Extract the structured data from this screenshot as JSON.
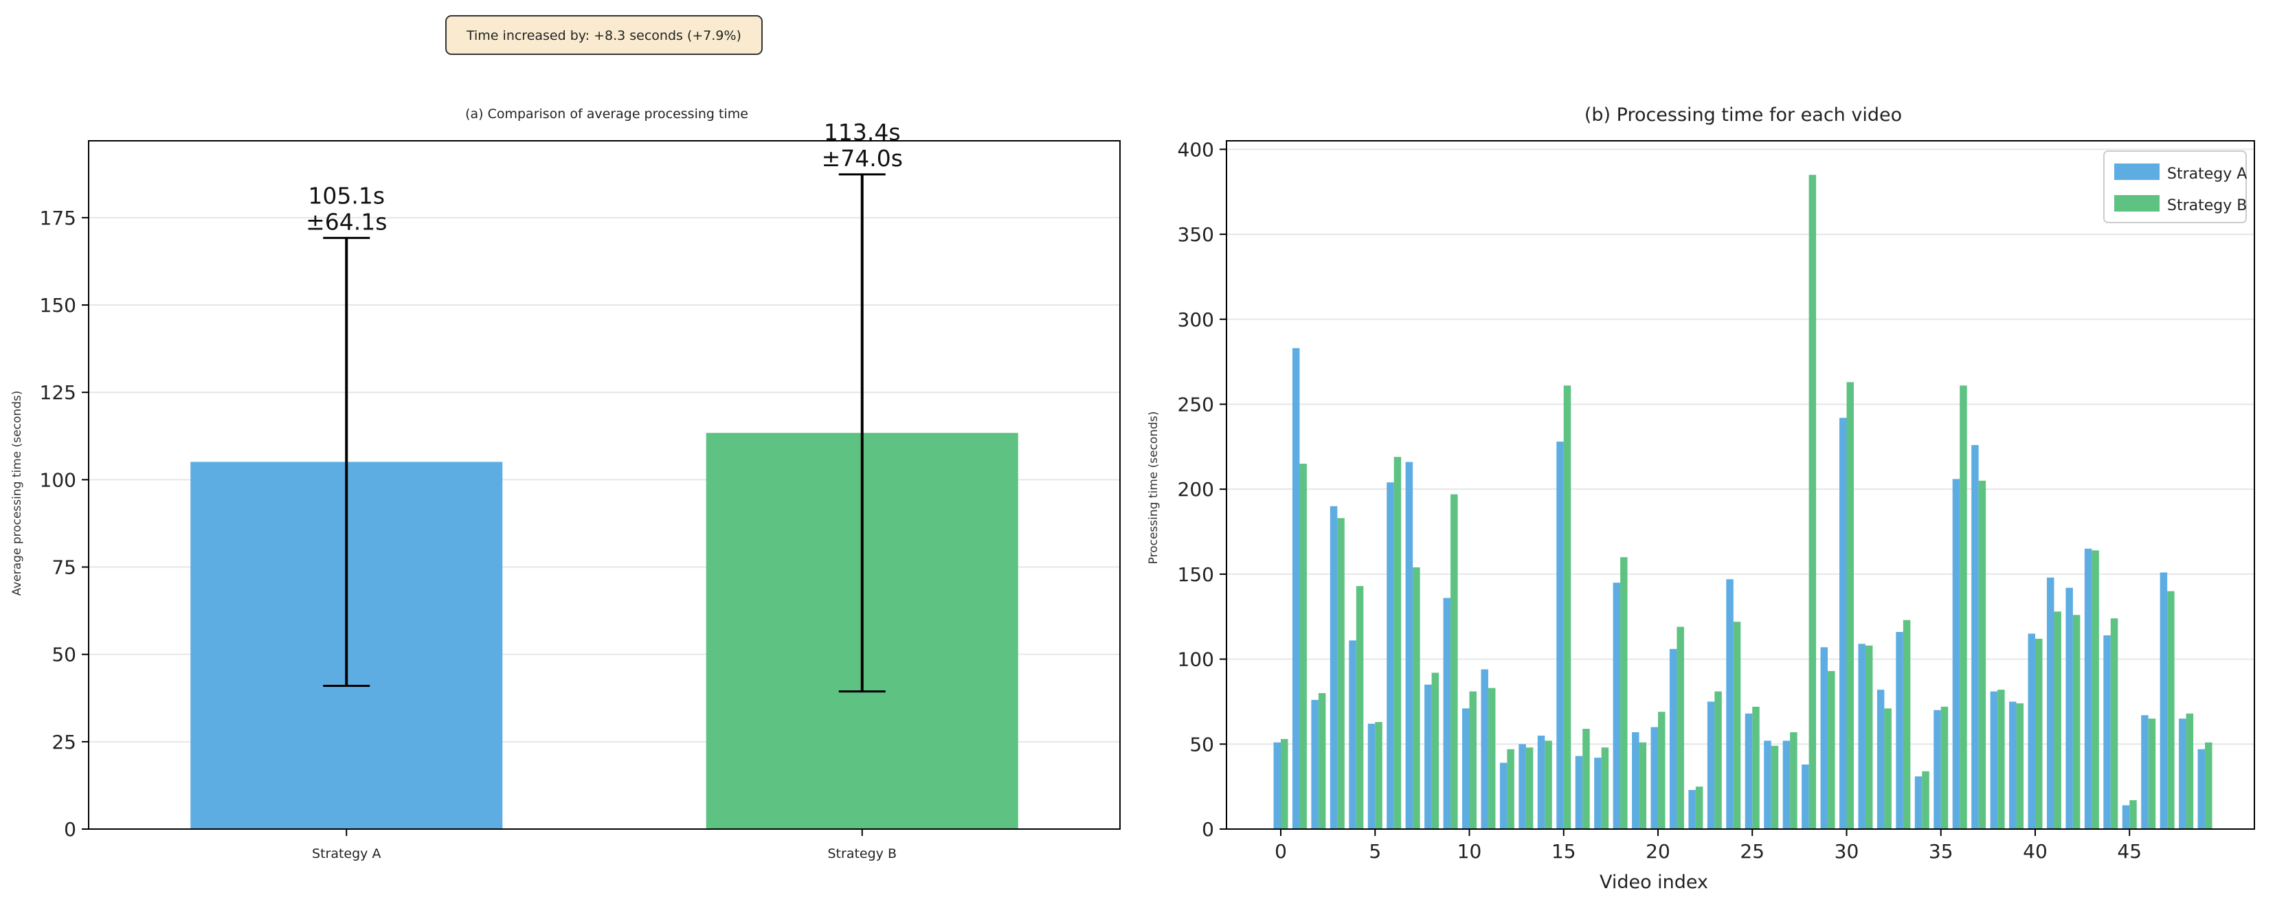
{
  "annotation": "Time increased by: +8.3 seconds (+7.9%)",
  "colors": {
    "strategy_a": "#5DADE2",
    "strategy_b": "#5EC283"
  },
  "chart_data": [
    {
      "type": "bar",
      "title": "(a) Comparison of average processing time",
      "xlabel": "",
      "ylabel": "Average processing time (seconds)",
      "categories": [
        "Strategy A",
        "Strategy B"
      ],
      "values": [
        105.1,
        113.4
      ],
      "errors": [
        64.1,
        74.0
      ],
      "value_labels": [
        [
          "105.1s",
          "±64.1s"
        ],
        [
          "113.4s",
          "±74.0s"
        ]
      ],
      "ylim": [
        0,
        197
      ],
      "yticks": [
        0,
        25,
        50,
        75,
        100,
        125,
        150,
        175
      ],
      "grid": "y"
    },
    {
      "type": "bar",
      "title": "(b) Processing time for each video",
      "xlabel": "Video index",
      "ylabel": "Processing time (seconds)",
      "x": [
        0,
        1,
        2,
        3,
        4,
        5,
        6,
        7,
        8,
        9,
        10,
        11,
        12,
        13,
        14,
        15,
        16,
        17,
        18,
        19,
        20,
        21,
        22,
        23,
        24,
        25,
        26,
        27,
        28,
        29,
        30,
        31,
        32,
        33,
        34,
        35,
        36,
        37,
        38,
        39,
        40,
        41,
        42,
        43,
        44,
        45,
        46,
        47,
        48,
        49
      ],
      "xticks": [
        0,
        5,
        10,
        15,
        20,
        25,
        30,
        35,
        40,
        45
      ],
      "ylim": [
        0,
        405
      ],
      "yticks": [
        0,
        50,
        100,
        150,
        200,
        250,
        300,
        350,
        400
      ],
      "legend": "top-right",
      "grid": "y",
      "series": [
        {
          "name": "Strategy A",
          "values": [
            51,
            283,
            76,
            190,
            111,
            62,
            204,
            216,
            85,
            136,
            71,
            94,
            39,
            50,
            55,
            228,
            43,
            42,
            145,
            57,
            60,
            106,
            23,
            75,
            147,
            68,
            52,
            52,
            38,
            107,
            242,
            109,
            82,
            116,
            31,
            70,
            206,
            226,
            81,
            75,
            115,
            148,
            142,
            165,
            114,
            14,
            67,
            151,
            65,
            47
          ]
        },
        {
          "name": "Strategy B",
          "values": [
            53,
            215,
            80,
            183,
            143,
            63,
            219,
            154,
            92,
            197,
            81,
            83,
            47,
            48,
            52,
            261,
            59,
            48,
            160,
            51,
            69,
            119,
            25,
            81,
            122,
            72,
            49,
            57,
            385,
            93,
            263,
            108,
            71,
            123,
            34,
            72,
            261,
            205,
            82,
            74,
            112,
            128,
            126,
            164,
            124,
            17,
            65,
            140,
            68,
            51
          ]
        }
      ]
    }
  ]
}
